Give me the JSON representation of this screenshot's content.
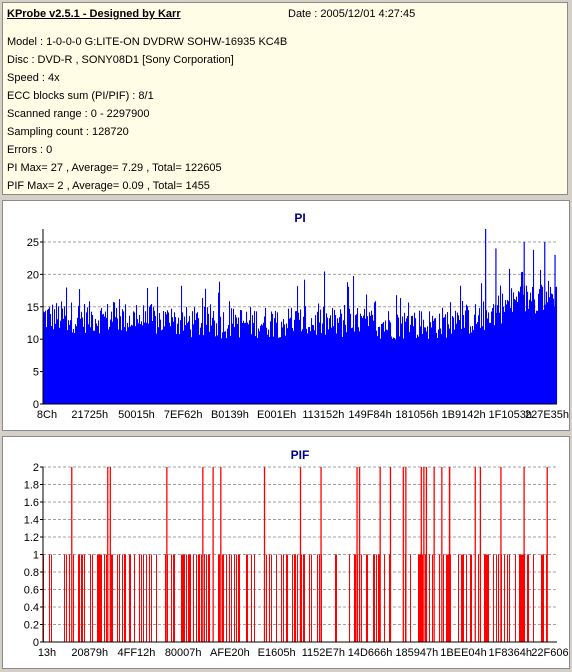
{
  "header": {
    "app_title": "KProbe v2.5.1 - Designed by Karr",
    "date": "Date : 2005/12/01 4:27:45"
  },
  "info_lines": [
    "Model : 1-0-0-0 G:LITE-ON DVDRW SOHW-16935 KC4B",
    "Disc : DVD-R , SONY08D1 [Sony Corporation]",
    "Speed : 4x",
    "ECC blocks sum (PI/PIF) : 8/1",
    "Scanned range : 0 - 2297900",
    "Sampling count : 128720",
    "Errors : 0",
    "PI Max= 27 , Average= 7.29 , Total= 122605",
    "PIF Max= 2 , Average= 0.09 , Total= 1455"
  ],
  "colors": {
    "pi_fill": "#0000ff",
    "pif_line": "#ff0000",
    "grid": "#a0a0a0",
    "title": "#000080",
    "info_bg": "#fffde6"
  },
  "chart_data": [
    {
      "type": "bar",
      "title": "PI",
      "xlabel": "",
      "ylabel": "",
      "ylim": [
        0,
        27
      ],
      "yticks": [
        "0",
        "5",
        "10",
        "15",
        "20",
        "25"
      ],
      "ytick_values": [
        0,
        5,
        10,
        15,
        20,
        25
      ],
      "xticks": [
        "8Ch",
        "21725h",
        "50015h",
        "7EF62h",
        "B0139h",
        "E001Eh",
        "113152h",
        "149F84h",
        "181056h",
        "1B9142h",
        "1F1053h",
        "227E35h"
      ],
      "grid": true,
      "max": 27,
      "average": 7.29,
      "base_profile": [
        {
          "x": 0.0,
          "y": 14.0
        },
        {
          "x": 0.15,
          "y": 13.8
        },
        {
          "x": 0.3,
          "y": 13.0
        },
        {
          "x": 0.45,
          "y": 13.2
        },
        {
          "x": 0.6,
          "y": 13.0
        },
        {
          "x": 0.75,
          "y": 12.8
        },
        {
          "x": 0.85,
          "y": 13.8
        },
        {
          "x": 0.92,
          "y": 16.5
        },
        {
          "x": 1.0,
          "y": 17.5
        }
      ],
      "peaks": [
        {
          "x": 0.86,
          "y": 27
        },
        {
          "x": 0.88,
          "y": 24
        },
        {
          "x": 0.935,
          "y": 25
        },
        {
          "x": 0.975,
          "y": 25
        },
        {
          "x": 0.995,
          "y": 23
        }
      ]
    },
    {
      "type": "bar",
      "title": "PIF",
      "xlabel": "",
      "ylabel": "",
      "ylim": [
        0,
        2
      ],
      "yticks": [
        "0",
        "0.2",
        "0.4",
        "0.6",
        "0.8",
        "1",
        "1.2",
        "1.4",
        "1.6",
        "1.8",
        "2"
      ],
      "ytick_values": [
        0,
        0.2,
        0.4,
        0.6,
        0.8,
        1,
        1.2,
        1.4,
        1.6,
        1.8,
        2
      ],
      "xticks": [
        "13h",
        "20879h",
        "4FF12h",
        "80007h",
        "AFE20h",
        "E1605h",
        "1152E7h",
        "14D666h",
        "185947h",
        "1BEE04h",
        "1F8364h",
        "22F606h"
      ],
      "grid": true,
      "max": 2,
      "average": 0.09,
      "two_positions": [
        0.055,
        0.125,
        0.13,
        0.24,
        0.31,
        0.33,
        0.345,
        0.43,
        0.5,
        0.54,
        0.61,
        0.615,
        0.655,
        0.675,
        0.7,
        0.705,
        0.735,
        0.74,
        0.745,
        0.76,
        0.775,
        0.79,
        0.79,
        0.84,
        0.85,
        0.89,
        0.935,
        0.98
      ]
    }
  ]
}
